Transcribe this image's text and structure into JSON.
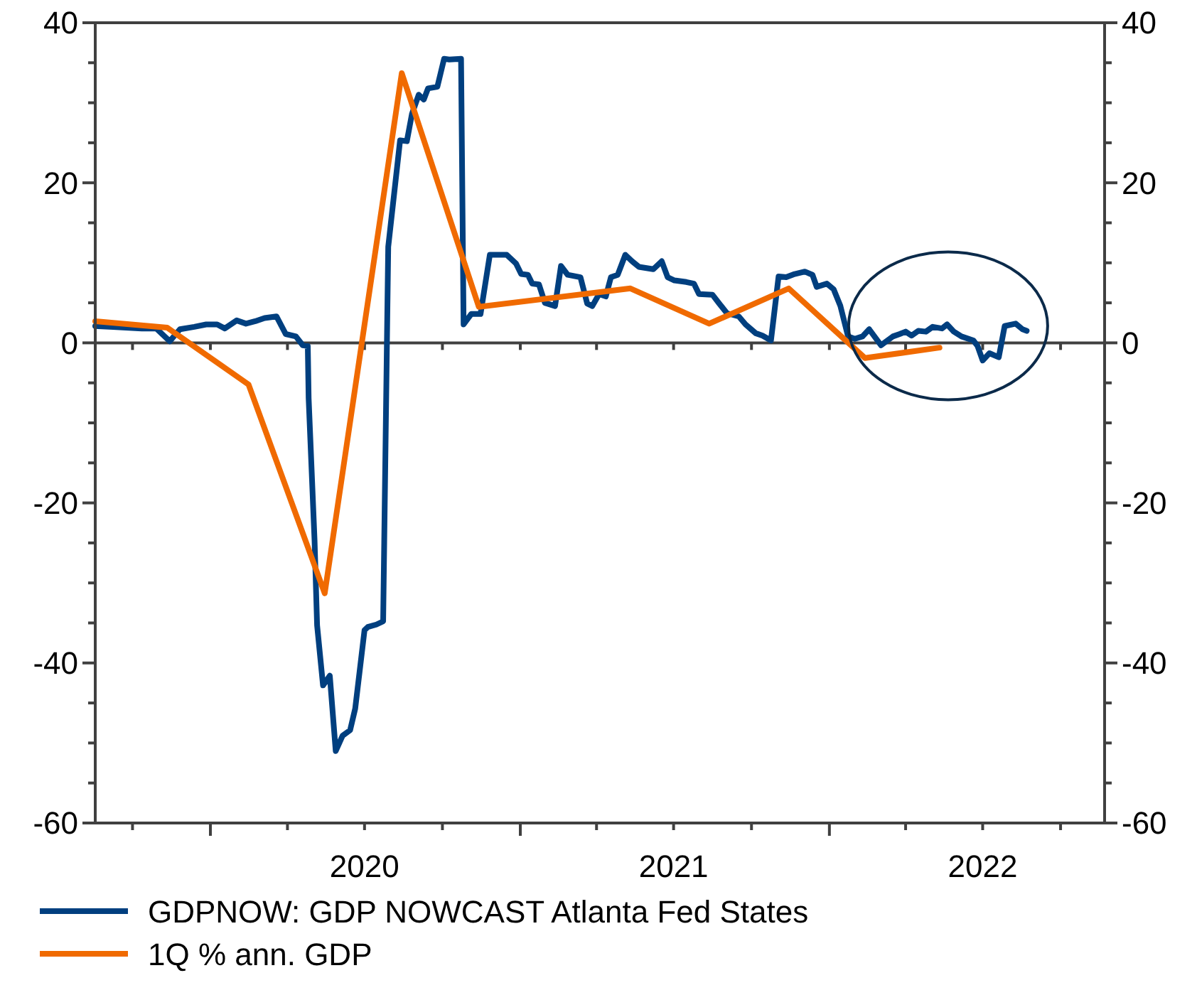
{
  "chart_data": {
    "type": "line",
    "legend": "bottom",
    "grid": false,
    "line_style": "solid",
    "marker": "none",
    "xlim": [
      "2019-08-18",
      "2022-11-22"
    ],
    "xticks": [
      {
        "value": "2019-10-01",
        "label": null
      },
      {
        "value": "2020-01-01",
        "label": null
      },
      {
        "value": "2020-04-01",
        "label": null
      },
      {
        "value": "2020-07-01",
        "label": "2020"
      },
      {
        "value": "2020-10-01",
        "label": null
      },
      {
        "value": "2021-01-01",
        "label": null
      },
      {
        "value": "2021-04-01",
        "label": null
      },
      {
        "value": "2021-07-01",
        "label": "2021"
      },
      {
        "value": "2021-10-01",
        "label": null
      },
      {
        "value": "2022-01-01",
        "label": null
      },
      {
        "value": "2022-04-01",
        "label": null
      },
      {
        "value": "2022-07-01",
        "label": "2022"
      },
      {
        "value": "2022-10-01",
        "label": null
      }
    ],
    "ylim": [
      -60,
      40
    ],
    "yticks": [
      -60,
      {
        "value": -55,
        "label": null
      },
      {
        "value": -50,
        "label": null
      },
      {
        "value": -45,
        "label": null
      },
      -40,
      {
        "value": -35,
        "label": null
      },
      {
        "value": -30,
        "label": null
      },
      {
        "value": -25,
        "label": null
      },
      -20,
      {
        "value": -15,
        "label": null
      },
      {
        "value": -10,
        "label": null
      },
      {
        "value": -5,
        "label": null
      },
      0,
      {
        "value": 5,
        "label": null
      },
      {
        "value": 10,
        "label": null
      },
      {
        "value": 15,
        "label": null
      },
      20,
      {
        "value": 25,
        "label": null
      },
      {
        "value": 30,
        "label": null
      },
      {
        "value": 35,
        "label": null
      },
      40
    ],
    "y2lim": [
      -60,
      40
    ],
    "y2ticks": [
      -60,
      {
        "value": -55,
        "label": null
      },
      {
        "value": -50,
        "label": null
      },
      {
        "value": -45,
        "label": null
      },
      -40,
      {
        "value": -35,
        "label": null
      },
      {
        "value": -30,
        "label": null
      },
      {
        "value": -25,
        "label": null
      },
      -20,
      {
        "value": -15,
        "label": null
      },
      {
        "value": -10,
        "label": null
      },
      {
        "value": -5,
        "label": null
      },
      0,
      {
        "value": 5,
        "label": null
      },
      {
        "value": 10,
        "label": null
      },
      {
        "value": 15,
        "label": null
      },
      20,
      {
        "value": 25,
        "label": null
      },
      {
        "value": 30,
        "label": null
      },
      {
        "value": 35,
        "label": null
      },
      40
    ],
    "ref_lines": [
      {
        "axis": "y",
        "value": 0,
        "color": "#404040"
      }
    ],
    "series": [
      {
        "name": "GDPNOW: GDP NOWCAST Atlanta Fed States",
        "color": "#003f7f",
        "x": [
          "2019-08-18",
          "2019-09-08",
          "2019-10-12",
          "2019-10-29",
          "2019-11-14",
          "2019-11-26",
          "2019-12-13",
          "2019-12-27",
          "2020-01-09",
          "2020-01-18",
          "2020-02-01",
          "2020-02-12",
          "2020-02-23",
          "2020-03-05",
          "2020-03-19",
          "2020-03-30",
          "2020-04-11",
          "2020-04-19",
          "2020-04-25",
          "2020-04-26",
          "2020-05-03",
          "2020-05-06",
          "2020-05-13",
          "2020-05-21",
          "2020-05-28",
          "2020-06-05",
          "2020-06-14",
          "2020-06-20",
          "2020-07-01",
          "2020-07-05",
          "2020-07-15",
          "2020-07-23",
          "2020-07-29",
          "2020-08-12",
          "2020-08-20",
          "2020-08-26",
          "2020-09-03",
          "2020-09-09",
          "2020-09-14",
          "2020-09-25",
          "2020-10-03",
          "2020-10-09",
          "2020-10-23",
          "2020-10-26",
          "2020-11-04",
          "2020-11-15",
          "2020-11-26",
          "2020-12-16",
          "2020-12-27",
          "2021-01-02",
          "2021-01-10",
          "2021-01-15",
          "2021-01-23",
          "2021-01-30",
          "2021-02-11",
          "2021-02-18",
          "2021-02-26",
          "2021-03-13",
          "2021-03-21",
          "2021-03-27",
          "2021-04-04",
          "2021-04-12",
          "2021-04-18",
          "2021-04-26",
          "2021-05-05",
          "2021-05-13",
          "2021-05-21",
          "2021-06-07",
          "2021-06-17",
          "2021-06-24",
          "2021-07-02",
          "2021-07-16",
          "2021-07-25",
          "2021-07-31",
          "2021-08-16",
          "2021-08-24",
          "2021-09-02",
          "2021-09-16",
          "2021-09-24",
          "2021-10-06",
          "2021-10-14",
          "2021-10-24",
          "2021-11-02",
          "2021-11-11",
          "2021-11-21",
          "2021-12-03",
          "2021-12-12",
          "2021-12-17",
          "2021-12-29",
          "2022-01-06",
          "2022-01-14",
          "2022-01-23",
          "2022-01-31",
          "2022-02-09",
          "2022-02-17",
          "2022-03-03",
          "2022-03-17",
          "2022-03-25",
          "2022-04-01",
          "2022-04-08",
          "2022-04-16",
          "2022-04-25",
          "2022-05-03",
          "2022-05-14",
          "2022-05-20",
          "2022-05-28",
          "2022-06-06",
          "2022-06-20",
          "2022-06-25",
          "2022-07-01",
          "2022-07-09",
          "2022-07-20",
          "2022-07-27",
          "2022-08-09",
          "2022-08-17",
          "2022-08-22"
        ],
        "values": [
          2.1,
          2.0,
          1.8,
          1.8,
          0.2,
          1.7,
          2.0,
          2.3,
          2.3,
          1.8,
          2.8,
          2.4,
          2.7,
          3.1,
          3.3,
          1.1,
          0.8,
          -0.3,
          -0.4,
          -6.9,
          -24.7,
          -35.3,
          -42.8,
          -41.6,
          -51.0,
          -49.1,
          -48.4,
          -45.7,
          -35.9,
          -35.5,
          -35.2,
          -34.8,
          12.0,
          25.3,
          25.2,
          28.6,
          31.0,
          30.4,
          31.8,
          32.0,
          35.5,
          35.4,
          35.5,
          2.3,
          3.6,
          3.6,
          11.0,
          11.0,
          9.9,
          8.6,
          8.5,
          7.4,
          7.3,
          5.0,
          4.6,
          9.6,
          8.5,
          8.2,
          4.9,
          4.6,
          6.1,
          5.8,
          8.2,
          8.5,
          11.0,
          10.2,
          9.5,
          9.2,
          10.2,
          8.2,
          7.8,
          7.6,
          7.4,
          6.1,
          6.0,
          4.9,
          3.7,
          3.3,
          2.3,
          1.2,
          0.9,
          0.3,
          8.3,
          8.2,
          8.6,
          8.9,
          8.5,
          7.0,
          7.4,
          6.7,
          4.6,
          0.8,
          0.5,
          0.8,
          1.7,
          -0.3,
          0.8,
          1.1,
          1.4,
          0.9,
          1.5,
          1.4,
          2.0,
          1.8,
          2.3,
          1.4,
          0.8,
          0.3,
          -0.4,
          -2.2,
          -1.3,
          -1.8,
          2.1,
          2.4,
          1.7,
          1.5
        ]
      },
      {
        "name": "1Q % ann. GDP",
        "color": "#f06a00",
        "x": [
          "2019-08-18",
          "2019-11-11",
          "2020-02-15",
          "2020-05-15",
          "2020-08-14",
          "2020-11-13",
          "2021-05-11",
          "2021-08-12",
          "2021-11-14",
          "2022-02-12",
          "2022-05-11"
        ],
        "values": [
          2.7,
          1.9,
          -5.2,
          -31.3,
          33.7,
          4.5,
          6.8,
          2.4,
          6.8,
          -1.9,
          -0.6
        ]
      }
    ]
  }
}
